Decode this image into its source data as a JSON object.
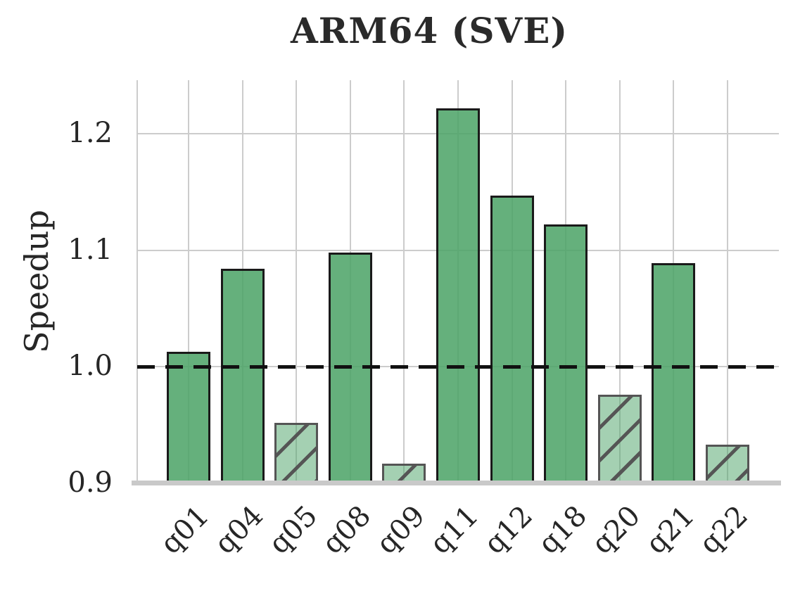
{
  "chart_data": {
    "type": "bar",
    "title": "ARM64 (SVE)",
    "xlabel": "",
    "ylabel": "Speedup",
    "categories": [
      "q01",
      "q04",
      "q05",
      "q08",
      "q09",
      "q11",
      "q12",
      "q18",
      "q20",
      "q21",
      "q22"
    ],
    "values": [
      1.013,
      1.084,
      0.952,
      1.098,
      0.917,
      1.222,
      1.147,
      1.122,
      0.976,
      1.089,
      0.933
    ],
    "hatched": [
      false,
      false,
      true,
      false,
      true,
      false,
      false,
      false,
      true,
      false,
      true
    ],
    "hatch_pattern": "/",
    "ylim": [
      0.9,
      1.246
    ],
    "yticks": [
      0.9,
      1.0,
      1.1,
      1.2
    ],
    "ytick_labels": [
      "0.9",
      "1.0",
      "1.1",
      "1.2"
    ],
    "reference_line": 1.0,
    "grid": true,
    "legend": null,
    "colors": {
      "bar_fill": "#4aa265",
      "bar_fill_alpha": 0.85,
      "bar_edge": "#1a1a1a",
      "slowdown_fill_alpha": 0.5,
      "slowdown_edge": "#555555",
      "hatch_line": "#555555",
      "grid": "#cccccc",
      "baseline": "#c9c9c9",
      "reference_line": "#111111",
      "text": "#262626"
    }
  }
}
